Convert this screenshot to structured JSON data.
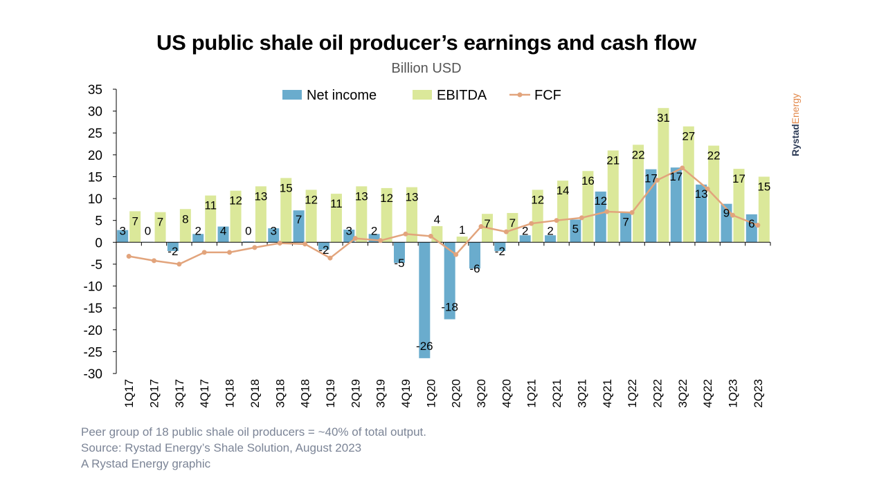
{
  "header": {
    "title": "US public shale oil producer’s earnings and cash flow",
    "subtitle": "Billion USD"
  },
  "footer": {
    "note": "Peer group of 18 public shale oil producers = ~40% of total output.",
    "source": "Source: Rystad Energy’s Shale Solution, August 2023",
    "credit": "A Rystad Energy graphic"
  },
  "brand": {
    "part1": "Rystad",
    "part2": "Energy"
  },
  "colors": {
    "net_income": "#6aaccd",
    "ebitda": "#dbe89a",
    "fcf": "#e2a47c",
    "axis": "#000000"
  },
  "chart_data": {
    "type": "bar",
    "title": "US public shale oil producer’s earnings and cash flow",
    "ylabel": "Billion USD",
    "ylim": [
      -30,
      35
    ],
    "yticks": [
      35,
      30,
      25,
      20,
      15,
      10,
      5,
      0,
      -5,
      -10,
      -15,
      -20,
      -25,
      -30
    ],
    "legend_position": "top",
    "grid": false,
    "categories": [
      "1Q17",
      "2Q17",
      "3Q17",
      "4Q17",
      "1Q18",
      "2Q18",
      "3Q18",
      "4Q18",
      "1Q19",
      "2Q19",
      "3Q19",
      "4Q19",
      "1Q20",
      "2Q20",
      "3Q20",
      "4Q20",
      "1Q21",
      "2Q21",
      "3Q21",
      "4Q21",
      "1Q22",
      "2Q22",
      "3Q22",
      "4Q22",
      "1Q23",
      "2Q23"
    ],
    "series": [
      {
        "name": "Net income",
        "type": "bar",
        "values": [
          2.8,
          0.1,
          -2.0,
          1.9,
          3.6,
          0.2,
          3.2,
          7.3,
          -1.7,
          2.9,
          1.9,
          -4.7,
          -26.5,
          -17.6,
          -6.0,
          -2.0,
          1.6,
          1.6,
          5.2,
          11.6,
          6.8,
          16.7,
          17.1,
          13.2,
          8.8,
          6.4
        ],
        "labels": [
          "3",
          "0",
          "-2",
          "2",
          "4",
          "0",
          "3",
          "7",
          "-2",
          "3",
          "2",
          "-5",
          "-26",
          "-18",
          "-6",
          "-2",
          "2",
          "2",
          "5",
          "12",
          "7",
          "17",
          "17",
          "13",
          "9",
          "6"
        ]
      },
      {
        "name": "EBITDA",
        "type": "bar",
        "values": [
          7.1,
          6.9,
          7.6,
          10.7,
          11.8,
          12.8,
          14.7,
          12.0,
          11.1,
          12.8,
          12.4,
          12.6,
          3.7,
          1.3,
          6.5,
          6.7,
          12.0,
          14.1,
          16.3,
          21.0,
          22.3,
          30.7,
          26.5,
          22.1,
          16.8,
          15.0
        ],
        "labels": [
          "7",
          "7",
          "8",
          "11",
          "12",
          "13",
          "15",
          "12",
          "11",
          "13",
          "12",
          "13",
          "4",
          "1",
          "7",
          "7",
          "12",
          "14",
          "16",
          "21",
          "22",
          "31",
          "27",
          "22",
          "17",
          "15"
        ]
      },
      {
        "name": "FCF",
        "type": "line",
        "values": [
          -3.2,
          -4.2,
          -5.0,
          -2.3,
          -2.3,
          -1.2,
          -0.2,
          -0.4,
          -3.6,
          0.9,
          0.4,
          1.9,
          1.4,
          -2.8,
          3.6,
          2.4,
          4.3,
          5.0,
          5.6,
          7.0,
          6.8,
          14.2,
          17.0,
          12.2,
          6.2,
          3.9
        ]
      }
    ]
  }
}
